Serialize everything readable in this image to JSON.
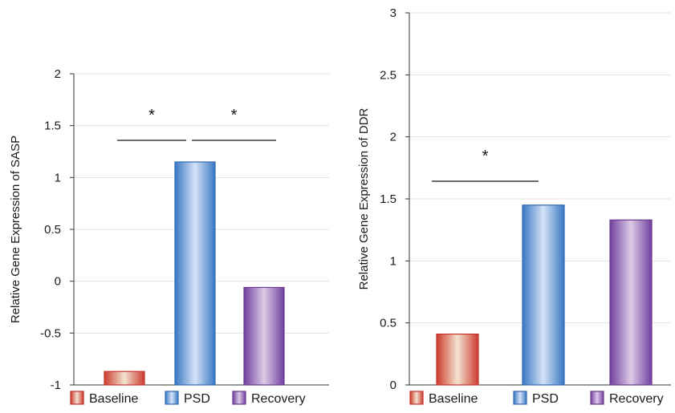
{
  "chart_data": [
    {
      "type": "bar",
      "categories": [
        "Baseline",
        "PSD",
        "Recovery"
      ],
      "values": [
        -0.87,
        1.15,
        -0.06
      ],
      "ylabel": "Relative Gene Expression of SASP",
      "ylim": [
        -1,
        2
      ],
      "yticks": [
        "-1",
        "-0.5",
        "0",
        "0.5",
        "1",
        "1.5",
        "2"
      ],
      "grid": true,
      "legend": [
        "Baseline",
        "PSD",
        "Recovery"
      ],
      "legend_position": "bottom",
      "significance": [
        {
          "from": "Baseline",
          "to": "PSD",
          "label": "*"
        },
        {
          "from": "PSD",
          "to": "Recovery",
          "label": "*"
        }
      ]
    },
    {
      "type": "bar",
      "categories": [
        "Baseline",
        "PSD",
        "Recovery"
      ],
      "values": [
        0.41,
        1.45,
        1.33
      ],
      "ylabel": "Relative Gene Expression of DDR",
      "ylim": [
        0,
        3
      ],
      "yticks": [
        "0",
        "0.5",
        "1",
        "1.5",
        "2",
        "2.5",
        "3"
      ],
      "grid": true,
      "legend": [
        "Baseline",
        "PSD",
        "Recovery"
      ],
      "legend_position": "bottom",
      "significance": [
        {
          "from": "Baseline",
          "to": "PSD",
          "label": "*"
        }
      ]
    }
  ],
  "colors": {
    "Baseline": {
      "edge": "#c8332e",
      "light": "#f3e3cf",
      "dark": "#cc3b2f"
    },
    "PSD": {
      "edge": "#2f6bb5",
      "light": "#d4e3f7",
      "dark": "#3a78c2"
    },
    "Recovery": {
      "edge": "#6b3b8f",
      "light": "#dccbe6",
      "dark": "#7140a0"
    }
  }
}
